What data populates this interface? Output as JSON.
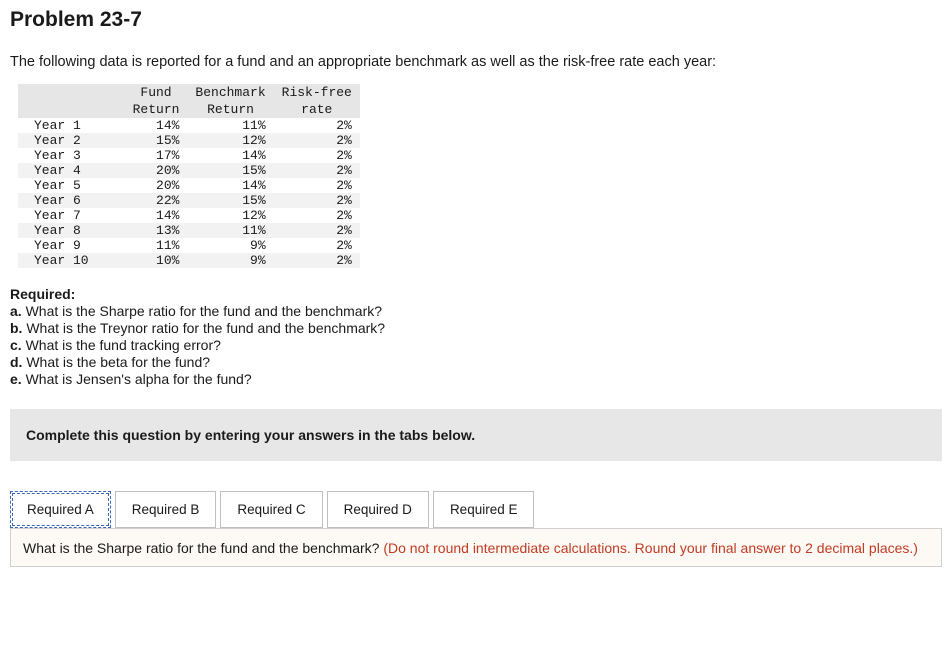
{
  "title": "Problem 23-7",
  "intro": "The following data is reported for a fund and an appropriate benchmark as well as the risk-free rate each year:",
  "table": {
    "columns": [
      {
        "line1": "",
        "line2": ""
      },
      {
        "line1": "Fund",
        "line2": "Return"
      },
      {
        "line1": "Benchmark",
        "line2": "Return"
      },
      {
        "line1": "Risk-free",
        "line2": "rate"
      }
    ],
    "col_text_align": [
      "left",
      "right",
      "right",
      "right"
    ],
    "header_bg": "#e6e6e6",
    "row_bg_odd": "#ffffff",
    "row_bg_even": "#f2f2f2",
    "font_family": "Courier New, monospace",
    "font_size_pt": 10,
    "rows": [
      {
        "label": "Year 1",
        "fund": "14%",
        "bench": "11%",
        "rf": "2%"
      },
      {
        "label": "Year 2",
        "fund": "15%",
        "bench": "12%",
        "rf": "2%"
      },
      {
        "label": "Year 3",
        "fund": "17%",
        "bench": "14%",
        "rf": "2%"
      },
      {
        "label": "Year 4",
        "fund": "20%",
        "bench": "15%",
        "rf": "2%"
      },
      {
        "label": "Year 5",
        "fund": "20%",
        "bench": "14%",
        "rf": "2%"
      },
      {
        "label": "Year 6",
        "fund": "22%",
        "bench": "15%",
        "rf": "2%"
      },
      {
        "label": "Year 7",
        "fund": "14%",
        "bench": "12%",
        "rf": "2%"
      },
      {
        "label": "Year 8",
        "fund": "13%",
        "bench": "11%",
        "rf": "2%"
      },
      {
        "label": "Year 9",
        "fund": "11%",
        "bench": "9%",
        "rf": "2%"
      },
      {
        "label": "Year 10",
        "fund": "10%",
        "bench": "9%",
        "rf": "2%"
      }
    ]
  },
  "required": {
    "heading": "Required:",
    "items": [
      {
        "letter": "a.",
        "text": "What is the Sharpe ratio for the fund and the benchmark?"
      },
      {
        "letter": "b.",
        "text": "What is the Treynor ratio for the fund and the benchmark?"
      },
      {
        "letter": "c.",
        "text": "What is the fund tracking error?"
      },
      {
        "letter": "d.",
        "text": "What is the beta for the fund?"
      },
      {
        "letter": "e.",
        "text": "What is Jensen's alpha for the fund?"
      }
    ]
  },
  "instruction_box": "Complete this question by entering your answers in the tabs below.",
  "tabs": [
    {
      "label": "Required A",
      "active": true
    },
    {
      "label": "Required B",
      "active": false
    },
    {
      "label": "Required C",
      "active": false
    },
    {
      "label": "Required D",
      "active": false
    },
    {
      "label": "Required E",
      "active": false
    }
  ],
  "tab_styles": {
    "active_border_color": "#3a66b5",
    "inactive_border_color": "#c0c0c0",
    "font_size_pt": 10,
    "padding": "10px 16px"
  },
  "question_panel": {
    "text": "What is the Sharpe ratio for the fund and the benchmark? ",
    "hint": "(Do not round intermediate calculations. Round your final answer to 2 decimal places.)",
    "background_color": "#fdfaf6",
    "hint_color": "#c23b22",
    "border_color": "#d0d0d0"
  }
}
